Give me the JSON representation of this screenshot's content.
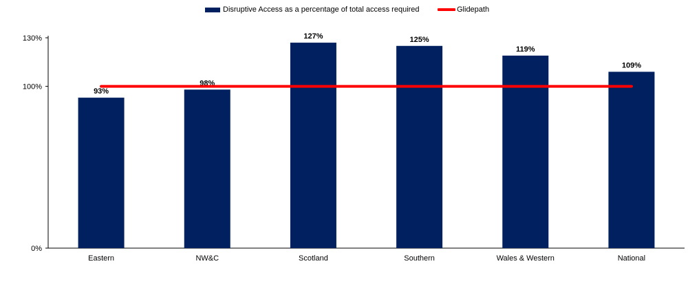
{
  "chart_data": {
    "type": "bar",
    "categories": [
      "Eastern",
      "NW&C",
      "Scotland",
      "Southern",
      "Wales & Western",
      "National"
    ],
    "series": [
      {
        "name": "Disruptive Access as a percentage of total access required",
        "type": "bar",
        "values": [
          93,
          98,
          127,
          125,
          119,
          109
        ],
        "data_labels": [
          "93%",
          "98%",
          "127%",
          "125%",
          "119%",
          "109%"
        ],
        "color": "#002060"
      },
      {
        "name": "Glidepath",
        "type": "line",
        "values": [
          100,
          100,
          100,
          100,
          100,
          100
        ],
        "color": "#FF0000"
      }
    ],
    "y_ticks": [
      {
        "value": 0,
        "label": "0%"
      },
      {
        "value": 100,
        "label": "100%"
      },
      {
        "value": 130,
        "label": "130%"
      }
    ],
    "ylim": [
      0,
      130
    ],
    "grid": false,
    "legend_position": "top",
    "title": "",
    "xlabel": "",
    "ylabel": ""
  }
}
